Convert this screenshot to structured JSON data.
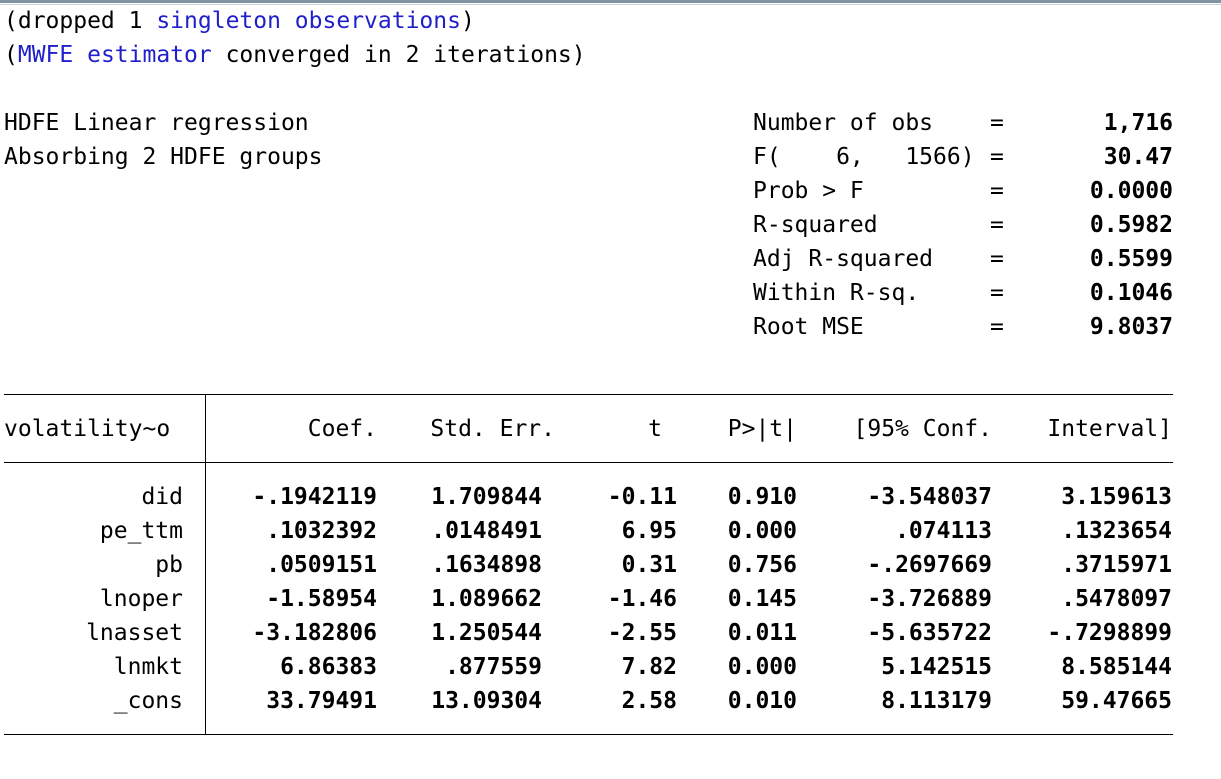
{
  "notes": {
    "line1": {
      "open": "(dropped 1 ",
      "link": "singleton observations",
      "close": ")"
    },
    "line2": {
      "open": "(",
      "link": "MWFE estimator",
      "close": " converged in 2 iterations)"
    }
  },
  "header": {
    "title": "HDFE Linear regression",
    "subtitle": "Absorbing 2 HDFE groups"
  },
  "stats": [
    {
      "label": "Number of obs",
      "eq": "=",
      "value": "1,716"
    },
    {
      "label": "F(    6,   1566)",
      "eq": "=",
      "value": "30.47"
    },
    {
      "label": "Prob > F",
      "eq": "=",
      "value": "0.0000"
    },
    {
      "label": "R-squared",
      "eq": "=",
      "value": "0.5982"
    },
    {
      "label": "Adj R-squared",
      "eq": "=",
      "value": "0.5599"
    },
    {
      "label": "Within R-sq.",
      "eq": "=",
      "value": "0.1046"
    },
    {
      "label": "Root MSE",
      "eq": "=",
      "value": "9.8037"
    }
  ],
  "table": {
    "depvar": "volatility~o",
    "columns": [
      "Coef.",
      "Std. Err.",
      "t",
      "P>|t|",
      "[95% Conf.",
      "Interval]"
    ],
    "rows": [
      {
        "name": "did",
        "cells": [
          "-.1942119",
          "1.709844",
          "-0.11",
          "0.910",
          "-3.548037",
          "3.159613"
        ]
      },
      {
        "name": "pe_ttm",
        "cells": [
          ".1032392",
          ".0148491",
          "6.95",
          "0.000",
          ".074113",
          ".1323654"
        ]
      },
      {
        "name": "pb",
        "cells": [
          ".0509151",
          ".1634898",
          "0.31",
          "0.756",
          "-.2697669",
          ".3715971"
        ]
      },
      {
        "name": "lnoper",
        "cells": [
          "-1.58954",
          "1.089662",
          "-1.46",
          "0.145",
          "-3.726889",
          ".5478097"
        ]
      },
      {
        "name": "lnasset",
        "cells": [
          "-3.182806",
          "1.250544",
          "-2.55",
          "0.011",
          "-5.635722",
          "-.7298899"
        ]
      },
      {
        "name": "lnmkt",
        "cells": [
          "6.86383",
          ".877559",
          "7.82",
          "0.000",
          "5.142515",
          "8.585144"
        ]
      },
      {
        "name": "_cons",
        "cells": [
          "33.79491",
          "13.09304",
          "2.58",
          "0.010",
          "8.113179",
          "59.47665"
        ]
      }
    ]
  },
  "colors": {
    "link": "#1f1fcc",
    "text": "#000000",
    "background": "#ffffff"
  }
}
